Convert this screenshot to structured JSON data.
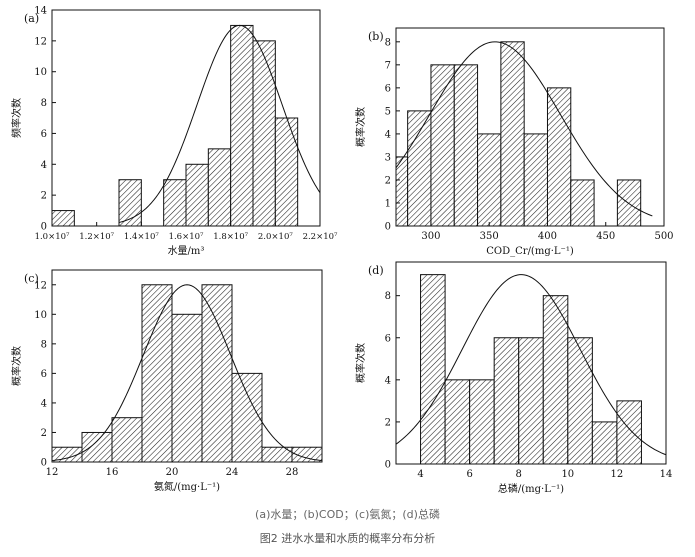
{
  "caption": {
    "subtitle": "(a)水量；(b)COD；(c)氨氮；(d)总磷",
    "title": "图2 进水水量和水质的概率分布分析"
  },
  "chart_data": [
    {
      "type": "bar",
      "panel": "(a)",
      "title": "",
      "ylabel": "频率次数",
      "xlabel": "水量/m³",
      "xlim": [
        10000000.0,
        22000000.0
      ],
      "ylim": [
        0,
        14
      ],
      "xticks": [
        10000000.0,
        12000000.0,
        14000000.0,
        16000000.0,
        18000000.0,
        20000000.0,
        22000000.0
      ],
      "xtick_labels": [
        "1.0×10⁷",
        "1.2×10⁷",
        "1.4×10⁷",
        "1.6×10⁷",
        "1.8×10⁷",
        "2.0×10⁷",
        "2.2×10⁷"
      ],
      "yticks": [
        0,
        2,
        4,
        6,
        8,
        10,
        12,
        14
      ],
      "bins": [
        {
          "x0": 10000000.0,
          "x1": 11000000.0,
          "count": 1
        },
        {
          "x0": 13000000.0,
          "x1": 14000000.0,
          "count": 3
        },
        {
          "x0": 15000000.0,
          "x1": 16000000.0,
          "count": 3
        },
        {
          "x0": 16000000.0,
          "x1": 17000000.0,
          "count": 4
        },
        {
          "x0": 17000000.0,
          "x1": 18000000.0,
          "count": 5
        },
        {
          "x0": 18000000.0,
          "x1": 19000000.0,
          "count": 13
        },
        {
          "x0": 19000000.0,
          "x1": 20000000.0,
          "count": 12
        },
        {
          "x0": 20000000.0,
          "x1": 21000000.0,
          "count": 7
        }
      ],
      "fit": {
        "mean": 18400000.0,
        "sd": 1900000.0,
        "peak": 13.0,
        "x_range": [
          13000000.0,
          22000000.0
        ]
      }
    },
    {
      "type": "bar",
      "panel": "(b)",
      "title": "",
      "ylabel": "概率次数",
      "xlabel": "COD_Cr/(mg·L⁻¹)",
      "xlim": [
        270,
        500
      ],
      "ylim": [
        0,
        8.6
      ],
      "xticks": [
        300,
        350,
        400,
        450,
        500
      ],
      "xtick_labels": [
        "300",
        "350",
        "400",
        "450",
        "500"
      ],
      "yticks": [
        0,
        1,
        2,
        3,
        4,
        5,
        6,
        7,
        8
      ],
      "bins": [
        {
          "x0": 270,
          "x1": 280,
          "count": 3
        },
        {
          "x0": 280,
          "x1": 300,
          "count": 5
        },
        {
          "x0": 300,
          "x1": 320,
          "count": 7
        },
        {
          "x0": 320,
          "x1": 340,
          "count": 7
        },
        {
          "x0": 340,
          "x1": 360,
          "count": 4
        },
        {
          "x0": 360,
          "x1": 380,
          "count": 8
        },
        {
          "x0": 380,
          "x1": 400,
          "count": 4
        },
        {
          "x0": 400,
          "x1": 420,
          "count": 6
        },
        {
          "x0": 420,
          "x1": 440,
          "count": 2
        },
        {
          "x0": 460,
          "x1": 480,
          "count": 2
        }
      ],
      "fit": {
        "mean": 355,
        "sd": 56,
        "peak": 8.0,
        "x_range": [
          270,
          490
        ]
      }
    },
    {
      "type": "bar",
      "panel": "(c)",
      "title": "",
      "ylabel": "概率次数",
      "xlabel": "氨氮/(mg·L⁻¹)",
      "xlim": [
        12,
        30
      ],
      "ylim": [
        0,
        13
      ],
      "xticks": [
        12,
        16,
        20,
        24,
        28
      ],
      "xtick_labels": [
        "12",
        "16",
        "20",
        "24",
        "28"
      ],
      "yticks": [
        0,
        2,
        4,
        6,
        8,
        10,
        12
      ],
      "bins": [
        {
          "x0": 12,
          "x1": 14,
          "count": 1
        },
        {
          "x0": 14,
          "x1": 16,
          "count": 2
        },
        {
          "x0": 16,
          "x1": 18,
          "count": 3
        },
        {
          "x0": 18,
          "x1": 20,
          "count": 12
        },
        {
          "x0": 20,
          "x1": 22,
          "count": 10
        },
        {
          "x0": 22,
          "x1": 24,
          "count": 12
        },
        {
          "x0": 24,
          "x1": 26,
          "count": 6
        },
        {
          "x0": 26,
          "x1": 28,
          "count": 1
        },
        {
          "x0": 28,
          "x1": 30,
          "count": 1
        }
      ],
      "fit": {
        "mean": 21,
        "sd": 2.9,
        "peak": 12.0,
        "x_range": [
          12,
          30
        ]
      }
    },
    {
      "type": "bar",
      "panel": "(d)",
      "title": "",
      "ylabel": "概率次数",
      "xlabel": "总磷/(mg·L⁻¹)",
      "xlim": [
        3,
        14
      ],
      "ylim": [
        0,
        9.6
      ],
      "xticks": [
        4,
        6,
        8,
        10,
        12,
        14
      ],
      "xtick_labels": [
        "4",
        "6",
        "8",
        "10",
        "12",
        "14"
      ],
      "yticks": [
        0,
        2,
        4,
        6,
        8
      ],
      "bins": [
        {
          "x0": 4,
          "x1": 5,
          "count": 9
        },
        {
          "x0": 5,
          "x1": 6,
          "count": 4
        },
        {
          "x0": 6,
          "x1": 7,
          "count": 4
        },
        {
          "x0": 7,
          "x1": 8,
          "count": 6
        },
        {
          "x0": 8,
          "x1": 9,
          "count": 6
        },
        {
          "x0": 9,
          "x1": 10,
          "count": 8
        },
        {
          "x0": 10,
          "x1": 11,
          "count": 6
        },
        {
          "x0": 11,
          "x1": 12,
          "count": 2
        },
        {
          "x0": 12,
          "x1": 13,
          "count": 3
        }
      ],
      "fit": {
        "mean": 8.1,
        "sd": 2.4,
        "peak": 9.0,
        "x_range": [
          3,
          14
        ]
      }
    }
  ]
}
